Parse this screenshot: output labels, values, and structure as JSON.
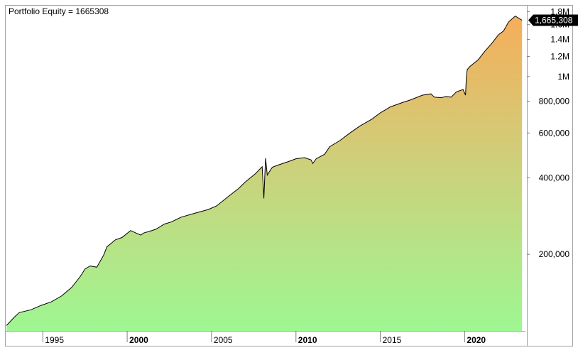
{
  "chart_data": {
    "type": "area",
    "title": "Portfolio Equity = 1665308",
    "y_scale": "log",
    "ylim": [
      100000,
      1900000
    ],
    "xlim": [
      1992.8,
      2023.6
    ],
    "y_ticks": [
      {
        "value": 1800000,
        "label": "1.8M"
      },
      {
        "value": 1600000,
        "label": "1.6M"
      },
      {
        "value": 1400000,
        "label": "1.4M"
      },
      {
        "value": 1200000,
        "label": "1.2M"
      },
      {
        "value": 1000000,
        "label": "1M"
      },
      {
        "value": 800000,
        "label": "800,000"
      },
      {
        "value": 600000,
        "label": "600,000"
      },
      {
        "value": 400000,
        "label": "400,000"
      },
      {
        "value": 200000,
        "label": "200,000"
      }
    ],
    "x_ticks": [
      {
        "value": 1995,
        "label": "1995",
        "bold": false
      },
      {
        "value": 2000,
        "label": "2000",
        "bold": true
      },
      {
        "value": 2005,
        "label": "2005",
        "bold": false
      },
      {
        "value": 2010,
        "label": "2010",
        "bold": true
      },
      {
        "value": 2015,
        "label": "2015",
        "bold": false
      },
      {
        "value": 2020,
        "label": "2020",
        "bold": true
      }
    ],
    "last_value_label": "1,665,308",
    "last_value": 1665308,
    "grid": false,
    "series": [
      {
        "x": [
          1992.85,
          1993.3,
          1993.6,
          1994.3,
          1994.9,
          1995.5,
          1996.1,
          1996.7,
          1997.2,
          1997.5,
          1997.8,
          1998.2,
          1998.6,
          1998.8,
          1999.3,
          1999.7,
          2000.2,
          2000.5,
          2000.8,
          2001.0,
          2001.3,
          2001.7,
          2002.2,
          2002.6,
          2003.2,
          2004.0,
          2004.8,
          2005.3,
          2006.0,
          2006.6,
          2007.0,
          2007.6,
          2008.0,
          2008.1,
          2008.2,
          2008.3,
          2008.6,
          2009.0,
          2009.5,
          2010.0,
          2010.5,
          2010.9,
          2011.0,
          2011.2,
          2011.7,
          2012.0,
          2012.6,
          2013.2,
          2013.8,
          2014.5,
          2015.0,
          2015.6,
          2016.3,
          2016.8,
          2017.5,
          2018.0,
          2018.2,
          2018.6,
          2018.9,
          2019.2,
          2019.5,
          2019.9,
          2020.05,
          2020.1,
          2020.15,
          2020.3,
          2020.8,
          2021.2,
          2021.6,
          2022.0,
          2022.3,
          2022.6,
          2023.0,
          2023.4
        ],
        "values": [
          105000,
          113000,
          118000,
          121000,
          126000,
          130000,
          137000,
          148000,
          163000,
          175000,
          180000,
          178000,
          198000,
          214000,
          228000,
          233000,
          248000,
          243000,
          238000,
          243000,
          246000,
          251000,
          263000,
          268000,
          280000,
          290000,
          300000,
          310000,
          338000,
          363000,
          385000,
          415000,
          442000,
          332000,
          478000,
          410000,
          440000,
          450000,
          462000,
          475000,
          480000,
          470000,
          455000,
          475000,
          495000,
          530000,
          560000,
          600000,
          640000,
          680000,
          720000,
          760000,
          790000,
          810000,
          845000,
          855000,
          830000,
          826000,
          835000,
          830000,
          870000,
          890000,
          845000,
          995000,
          1065000,
          1095000,
          1165000,
          1260000,
          1350000,
          1460000,
          1510000,
          1640000,
          1730000,
          1665308
        ]
      }
    ]
  }
}
